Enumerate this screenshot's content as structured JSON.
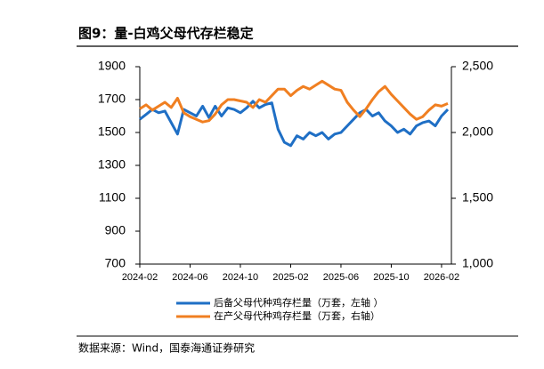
{
  "chart_data": {
    "type": "line",
    "title": "图9：量-白鸡父母代存栏稳定",
    "source": "数据来源：Wind，国泰海通证券研究",
    "categories": [
      "2024-02",
      null,
      null,
      null,
      null,
      null,
      null,
      null,
      "2024-06",
      null,
      null,
      null,
      null,
      null,
      null,
      null,
      "2024-10",
      null,
      null,
      null,
      null,
      null,
      null,
      null,
      "2025-02",
      null,
      null,
      null,
      null,
      null,
      null,
      null,
      "2025-06",
      null,
      null,
      null,
      null,
      null,
      null,
      null,
      "2025-10",
      null,
      null,
      null,
      null,
      null,
      null,
      null,
      "2026-02",
      null
    ],
    "ylim": [
      700,
      1900
    ],
    "yticks": [
      700,
      900,
      1100,
      1300,
      1500,
      1700,
      1900
    ],
    "y2lim": [
      1000,
      2500
    ],
    "y2ticks": [
      {
        "value": 1000,
        "label": "1,000"
      },
      {
        "value": 1500,
        "label": "1,500"
      },
      {
        "value": 2000,
        "label": "2,000"
      },
      {
        "value": 2500,
        "label": "2,500"
      }
    ],
    "series": [
      {
        "name": "后备父母代种鸡存栏量（万套，左轴 ）",
        "color": "#1f6fc5",
        "values": [
          1580,
          1610,
          1640,
          1620,
          1630,
          1560,
          1490,
          1640,
          1620,
          1600,
          1660,
          1590,
          1660,
          1600,
          1650,
          1640,
          1620,
          1650,
          1690,
          1650,
          1670,
          1680,
          1520,
          1440,
          1420,
          1480,
          1460,
          1500,
          1480,
          1500,
          1460,
          1490,
          1500,
          1540,
          1580,
          1620,
          1640,
          1600,
          1620,
          1570,
          1540,
          1500,
          1520,
          1490,
          1540,
          1560,
          1570,
          1540,
          1600,
          1640
        ]
      },
      {
        "name": "在产父母代种鸡存栏量（万套，右轴）",
        "color": "#f07f21",
        "axis": "y2",
        "values": [
          2180,
          2210,
          2170,
          2200,
          2230,
          2190,
          2260,
          2150,
          2120,
          2100,
          2080,
          2090,
          2140,
          2210,
          2250,
          2250,
          2240,
          2230,
          2190,
          2250,
          2230,
          2280,
          2330,
          2330,
          2280,
          2320,
          2350,
          2330,
          2360,
          2390,
          2360,
          2330,
          2320,
          2230,
          2170,
          2120,
          2180,
          2250,
          2310,
          2350,
          2290,
          2240,
          2190,
          2140,
          2100,
          2120,
          2170,
          2210,
          2200,
          2220
        ]
      }
    ]
  }
}
